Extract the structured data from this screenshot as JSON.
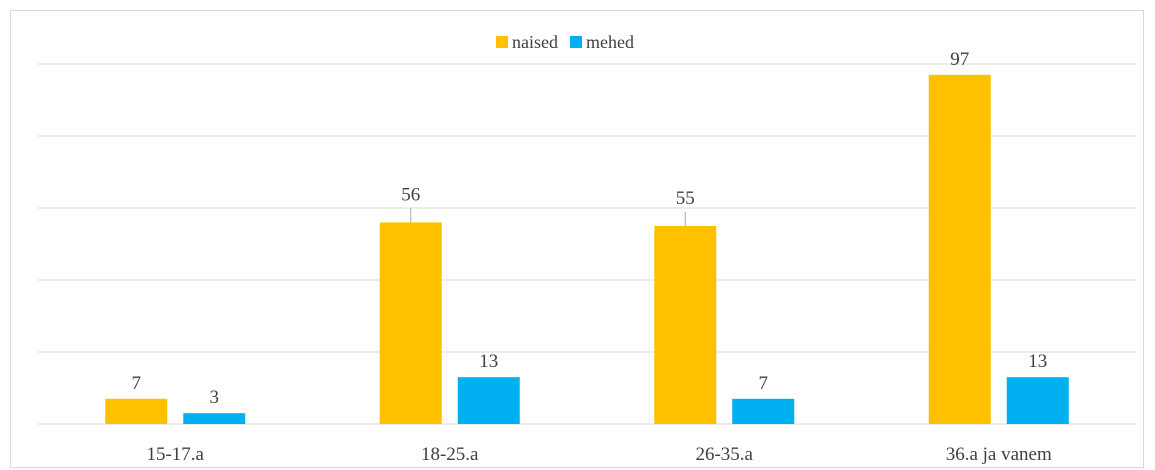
{
  "chart_data": {
    "type": "bar",
    "title": "",
    "xlabel": "",
    "ylabel": "",
    "categories": [
      "15-17.a",
      "18-25.a",
      "26-35.a",
      "36.a ja vanem"
    ],
    "series": [
      {
        "name": "naised",
        "values": [
          7,
          56,
          55,
          97
        ],
        "color": "#FFC000"
      },
      {
        "name": "mehed",
        "values": [
          3,
          13,
          7,
          13
        ],
        "color": "#00B0F0"
      }
    ],
    "ylim": [
      0,
      100
    ],
    "y_gridline_step": 20,
    "y_axis_labels_visible": false,
    "grid": true,
    "legend_position": "top-center",
    "data_labels": true
  }
}
